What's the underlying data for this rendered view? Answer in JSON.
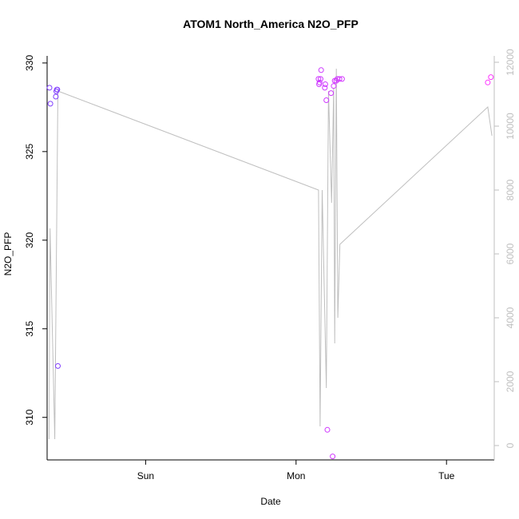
{
  "chart_data": {
    "type": "scatter",
    "title": "ATOM1 North_America N2O_PFP",
    "xlabel": "Date",
    "ylabel": "N2O_PFP",
    "x_axis": {
      "type": "date",
      "range": [
        "2016-08-06T08:17",
        "2016-08-09T07:37"
      ],
      "ticks": [
        {
          "label": "Sun",
          "value": "2016-08-07T00:00"
        },
        {
          "label": "Mon",
          "value": "2016-08-08T00:00"
        },
        {
          "label": "Tue",
          "value": "2016-08-09T00:00"
        }
      ]
    },
    "y_left": {
      "range": [
        307.6,
        330.4
      ],
      "ticks": [
        310,
        315,
        320,
        325,
        330
      ]
    },
    "y_right": {
      "range": [
        -450,
        12200
      ],
      "ticks": [
        0,
        2000,
        4000,
        6000,
        8000,
        10000,
        12000
      ],
      "color": "#bfbfbf"
    },
    "grid": false,
    "legend": "none",
    "colors": {
      "line": "#bfbfbf",
      "points_start": "#7f3fff",
      "points_end": "#ff33ff"
    },
    "series": [
      {
        "type": "points",
        "axis": "left",
        "points": [
          {
            "x": "2016-08-06T08:40",
            "y": 328.6
          },
          {
            "x": "2016-08-06T08:48",
            "y": 327.7
          },
          {
            "x": "2016-08-06T09:40",
            "y": 328.1
          },
          {
            "x": "2016-08-06T09:45",
            "y": 328.4
          },
          {
            "x": "2016-08-06T09:50",
            "y": 328.5
          },
          {
            "x": "2016-08-06T09:55",
            "y": 328.5
          },
          {
            "x": "2016-08-06T10:00",
            "y": 312.9
          },
          {
            "x": "2016-08-08T03:35",
            "y": 329.1
          },
          {
            "x": "2016-08-08T03:40",
            "y": 328.8
          },
          {
            "x": "2016-08-08T03:45",
            "y": 328.9
          },
          {
            "x": "2016-08-08T03:55",
            "y": 329.1
          },
          {
            "x": "2016-08-08T04:00",
            "y": 329.6
          },
          {
            "x": "2016-08-08T04:35",
            "y": 328.6
          },
          {
            "x": "2016-08-08T04:40",
            "y": 328.8
          },
          {
            "x": "2016-08-08T04:50",
            "y": 327.9
          },
          {
            "x": "2016-08-08T05:00",
            "y": 309.3
          },
          {
            "x": "2016-08-08T05:35",
            "y": 328.3
          },
          {
            "x": "2016-08-08T05:50",
            "y": 307.8
          },
          {
            "x": "2016-08-08T06:00",
            "y": 328.7
          },
          {
            "x": "2016-08-08T06:10",
            "y": 329.0
          },
          {
            "x": "2016-08-08T06:25",
            "y": 329.0
          },
          {
            "x": "2016-08-08T06:35",
            "y": 329.1
          },
          {
            "x": "2016-08-08T06:55",
            "y": 329.1
          },
          {
            "x": "2016-08-08T07:20",
            "y": 329.1
          },
          {
            "x": "2016-08-09T06:35",
            "y": 328.9
          },
          {
            "x": "2016-08-09T07:05",
            "y": 329.2
          }
        ]
      },
      {
        "type": "line",
        "axis": "right",
        "points": [
          {
            "x": "2016-08-06T08:35",
            "y": 200
          },
          {
            "x": "2016-08-06T08:45",
            "y": 6800
          },
          {
            "x": "2016-08-06T09:30",
            "y": 200
          },
          {
            "x": "2016-08-06T10:00",
            "y": 11100
          },
          {
            "x": "2016-08-08T03:35",
            "y": 8000
          },
          {
            "x": "2016-08-08T03:50",
            "y": 600
          },
          {
            "x": "2016-08-08T04:10",
            "y": 8000
          },
          {
            "x": "2016-08-08T04:50",
            "y": 1800
          },
          {
            "x": "2016-08-08T05:10",
            "y": 11100
          },
          {
            "x": "2016-08-08T05:40",
            "y": 7600
          },
          {
            "x": "2016-08-08T06:00",
            "y": 11200
          },
          {
            "x": "2016-08-08T06:10",
            "y": 3200
          },
          {
            "x": "2016-08-08T06:25",
            "y": 11800
          },
          {
            "x": "2016-08-08T06:40",
            "y": 4000
          },
          {
            "x": "2016-08-08T07:00",
            "y": 6300
          },
          {
            "x": "2016-08-09T06:35",
            "y": 10600
          },
          {
            "x": "2016-08-09T07:15",
            "y": 9700
          }
        ]
      }
    ]
  }
}
